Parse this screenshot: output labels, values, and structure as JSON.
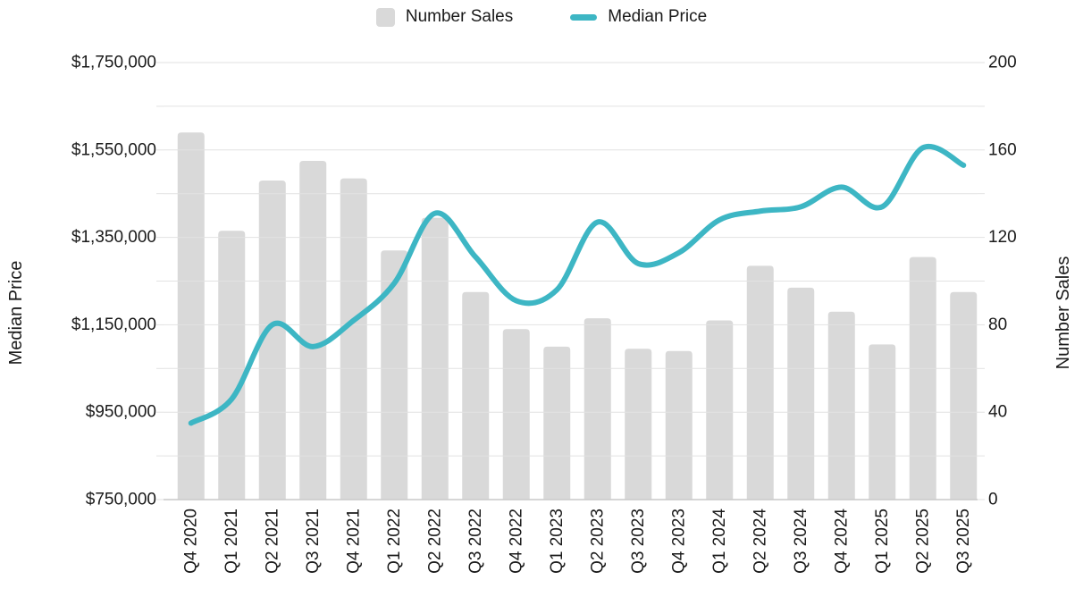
{
  "legend": {
    "items": [
      {
        "label": "Number Sales",
        "swatch": "bar-square"
      },
      {
        "label": "Median Price",
        "swatch": "line-dash"
      }
    ]
  },
  "chart_data": {
    "type": "combo-bar-line",
    "categories": [
      "Q4 2020",
      "Q1 2021",
      "Q2 2021",
      "Q3 2021",
      "Q4 2021",
      "Q1 2022",
      "Q2 2022",
      "Q3 2022",
      "Q4 2022",
      "Q1 2023",
      "Q2 2023",
      "Q3 2023",
      "Q4 2023",
      "Q1 2024",
      "Q2 2024",
      "Q3 2024",
      "Q4 2024",
      "Q1 2025",
      "Q2 2025",
      "Q3 2025"
    ],
    "series": [
      {
        "name": "Number Sales",
        "type": "bar",
        "axis": "right",
        "color": "#d9d9d9",
        "values": [
          168,
          123,
          146,
          155,
          147,
          114,
          129,
          95,
          78,
          70,
          83,
          69,
          68,
          82,
          107,
          97,
          86,
          71,
          111,
          95
        ]
      },
      {
        "name": "Median Price",
        "type": "line",
        "axis": "left",
        "color": "#3db6c4",
        "values": [
          925000,
          980000,
          1150000,
          1100000,
          1160000,
          1245000,
          1405000,
          1305000,
          1205000,
          1230000,
          1385000,
          1290000,
          1315000,
          1390000,
          1410000,
          1420000,
          1465000,
          1420000,
          1555000,
          1515000
        ]
      }
    ],
    "left_axis": {
      "title": "Median Price",
      "min": 750000,
      "max": 1750000,
      "label_interval": 200000,
      "gridline_interval": 100000,
      "tick_labels": [
        "$1,750,000",
        "$1,550,000",
        "$1,350,000",
        "$1,150,000",
        "$950,000",
        "$750,000"
      ]
    },
    "right_axis": {
      "title": "Number Sales",
      "min": 0,
      "max": 200,
      "label_interval": 40,
      "gridline_interval": 20,
      "tick_labels": [
        "200",
        "160",
        "120",
        "80",
        "40",
        "0"
      ]
    },
    "grid": {
      "minor_gridlines": true,
      "gridline_color": "#e2e2e2",
      "axisline_color": "#c9c9c9",
      "text_color": "#1a1a1a"
    },
    "legend_position": "top-center"
  }
}
